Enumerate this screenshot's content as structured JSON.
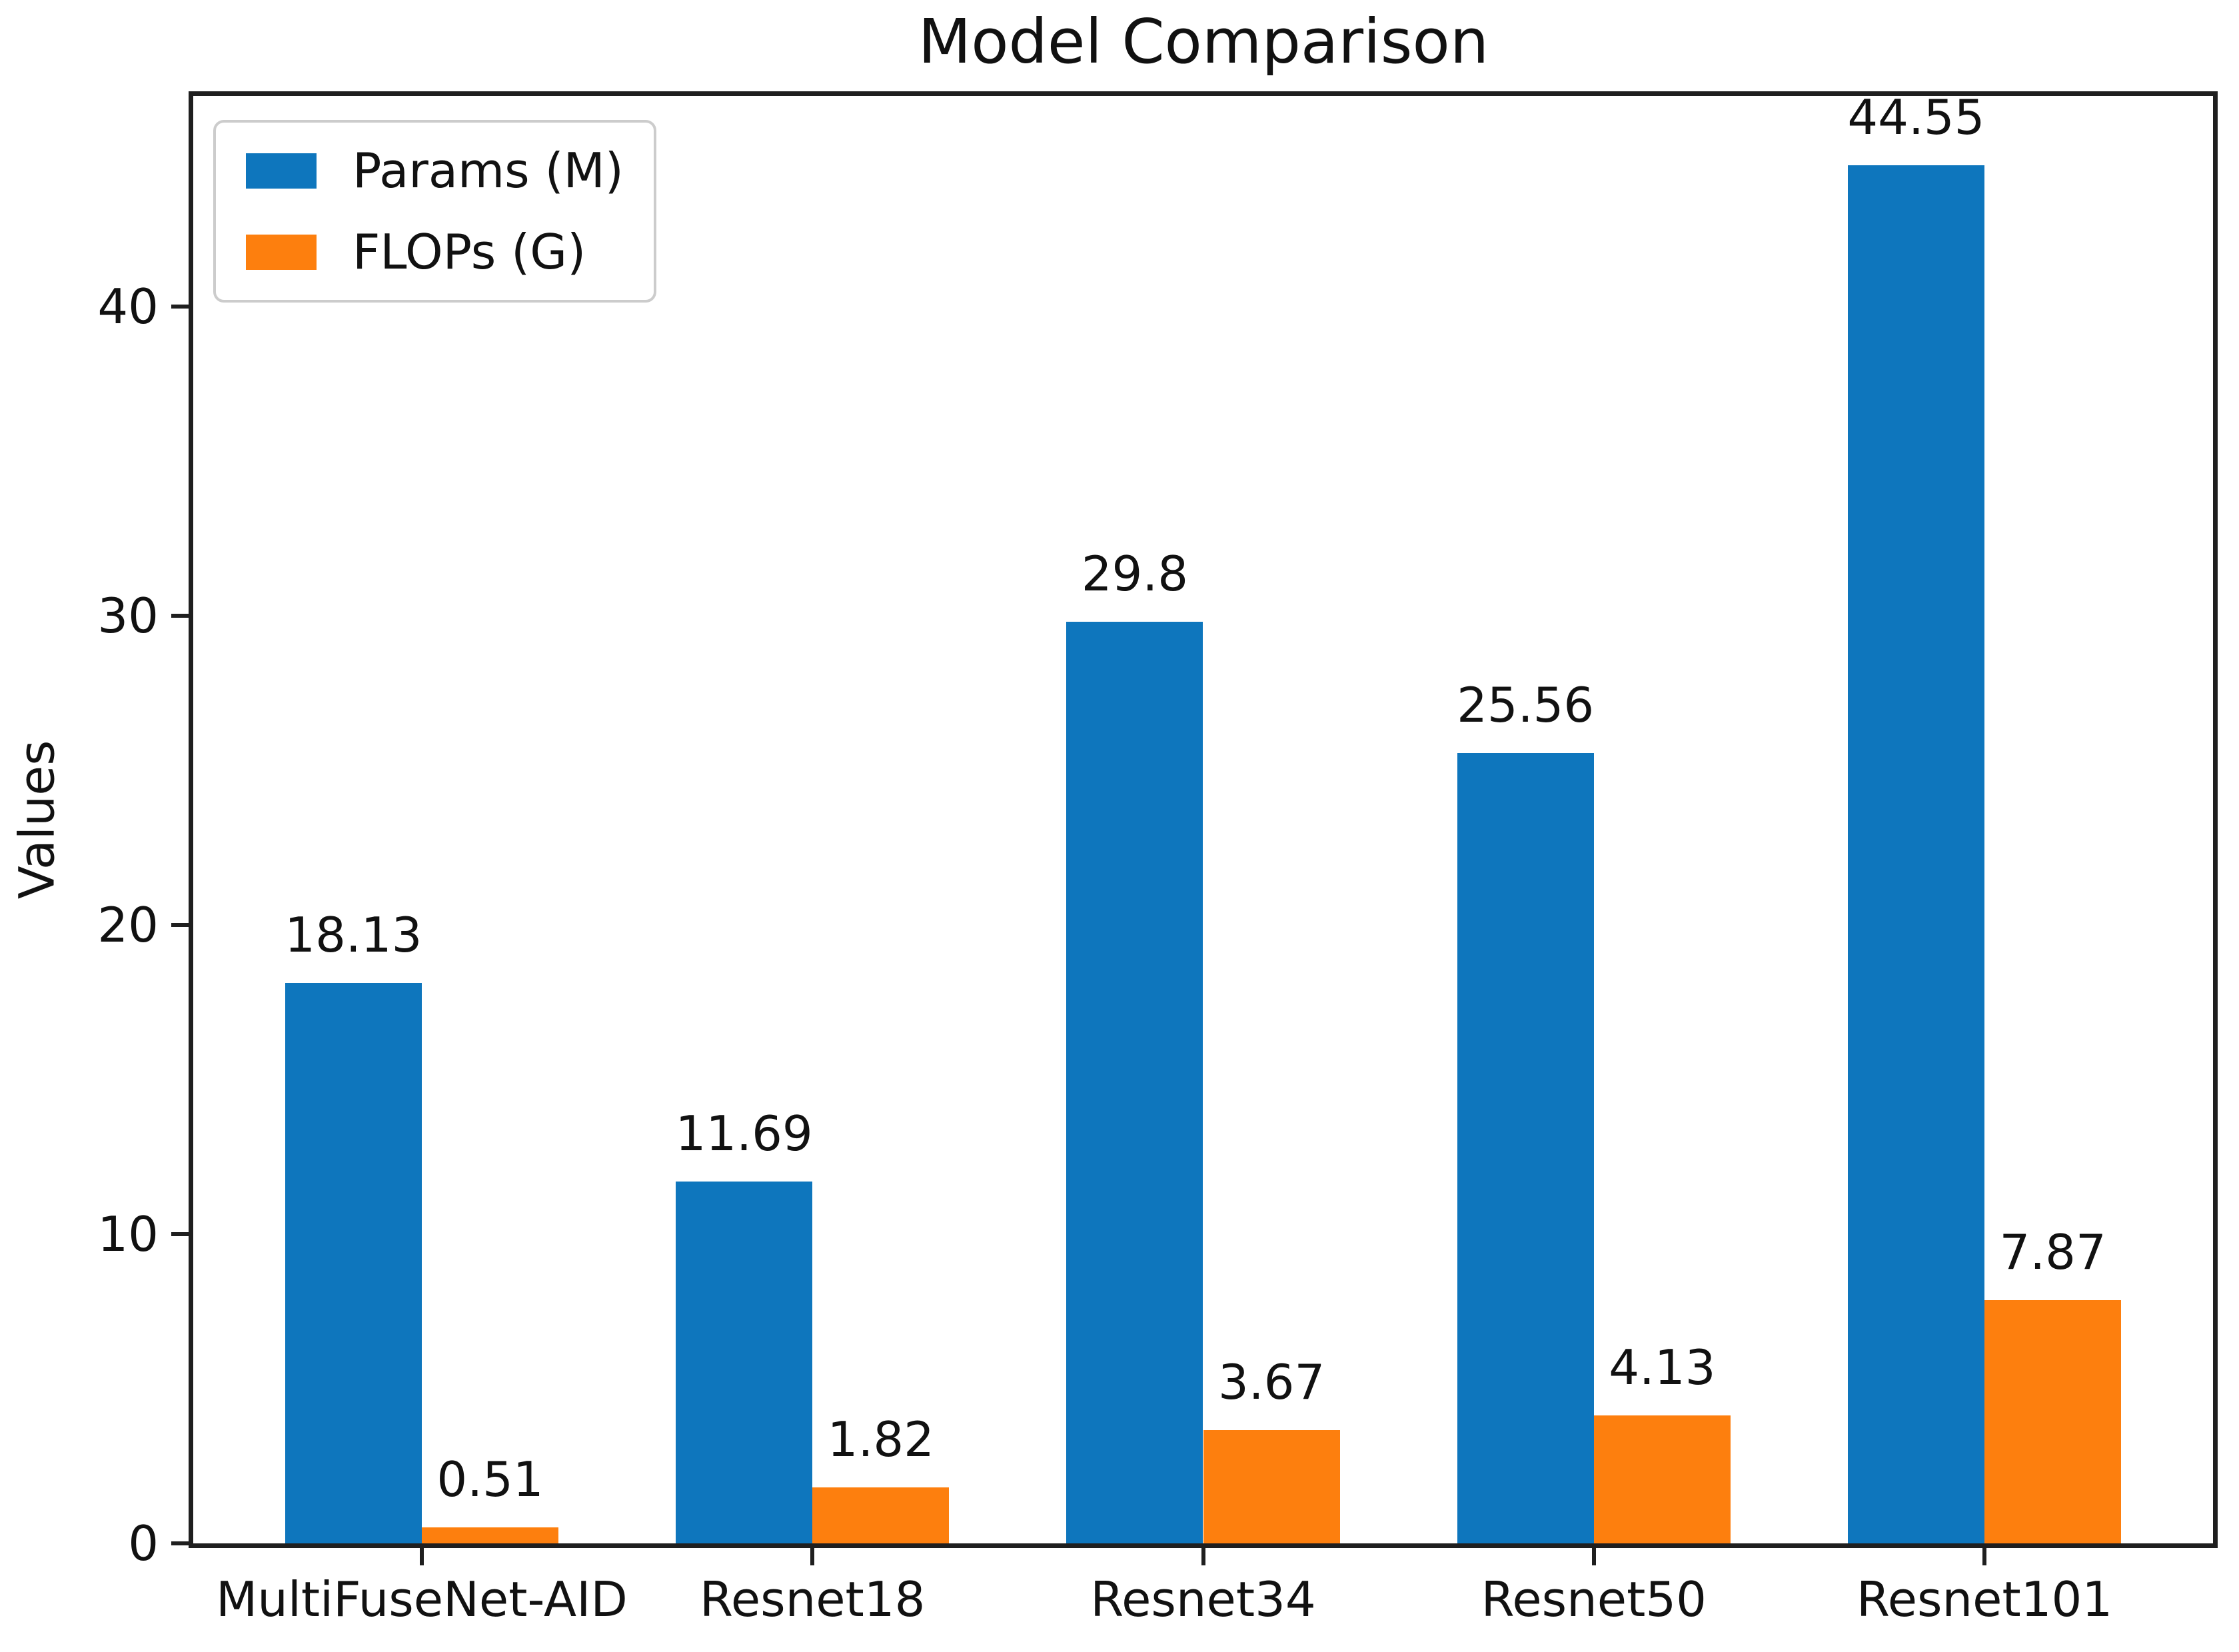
{
  "chart_data": {
    "type": "bar",
    "title": "Model Comparison",
    "xlabel": "",
    "ylabel": "Values",
    "categories": [
      "MultiFuseNet-AID",
      "Resnet18",
      "Resnet34",
      "Resnet50",
      "Resnet101"
    ],
    "series": [
      {
        "name": "Params (M)",
        "color": "#0e76bd",
        "values": [
          18.13,
          11.69,
          29.8,
          25.56,
          44.55
        ]
      },
      {
        "name": "FLOPs (G)",
        "color": "#fd7f0e",
        "values": [
          0.51,
          1.82,
          3.67,
          4.13,
          7.87
        ]
      }
    ],
    "yticks": [
      0,
      10,
      20,
      30,
      40
    ],
    "ylim": [
      0,
      46.8
    ],
    "grid": false,
    "legend_position": "upper left",
    "bar_value_labels_shown": true
  }
}
